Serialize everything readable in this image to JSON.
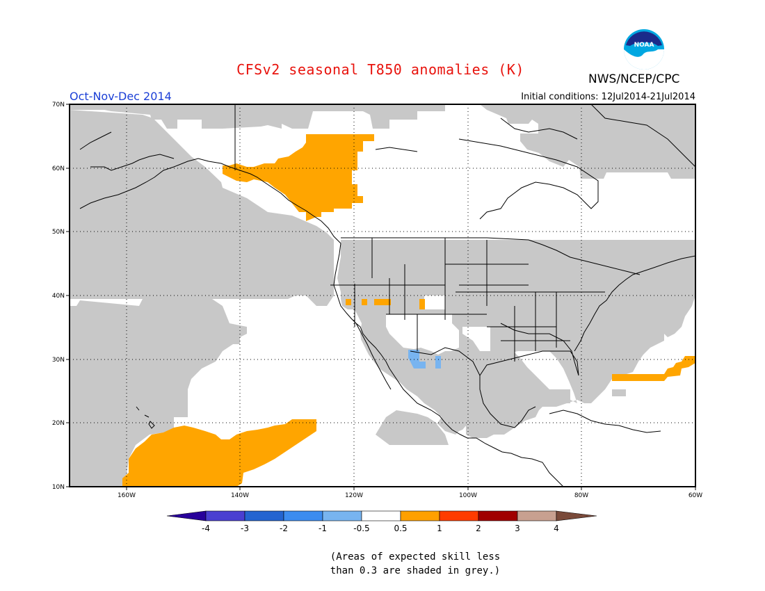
{
  "header": {
    "title": "CFSv2 seasonal T850 anomalies (K)",
    "agency": "NWS/NCEP/CPC",
    "logo_text": "NOAA",
    "season": "Oct-Nov-Dec 2014",
    "initial_conditions": "Initial conditions: 12Jul2014-21Jul2014"
  },
  "map": {
    "lon_range": [
      -170,
      -60
    ],
    "lat_range": [
      10,
      70
    ],
    "lat_labels": [
      "10N",
      "20N",
      "30N",
      "40N",
      "50N",
      "60N",
      "70N"
    ],
    "lon_labels": [
      "160W",
      "140W",
      "120W",
      "100W",
      "80W",
      "60W"
    ],
    "grid": true,
    "skill_mask_color": "#c8c8c8",
    "positive_color": "#ffa500",
    "negative_color": "#78b4f0"
  },
  "colorbar": {
    "labels": [
      "-4",
      "-3",
      "-2",
      "-1",
      "-0.5",
      "0.5",
      "1",
      "2",
      "3",
      "4"
    ],
    "colors": [
      "#28009a",
      "#4a3fd1",
      "#2464d0",
      "#3c8cf0",
      "#78b4f0",
      "#ffffff",
      "#ffa000",
      "#ff3c00",
      "#a00000",
      "#c8a090",
      "#7a4a3a"
    ]
  },
  "note": {
    "line1": "(Areas of expected skill less",
    "line2": "than 0.3 are shaded in grey.)"
  }
}
